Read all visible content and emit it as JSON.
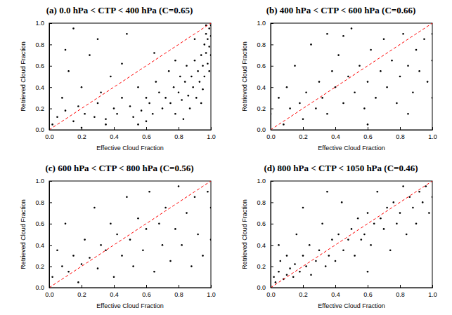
{
  "chart_data": [
    {
      "type": "scatter",
      "title": "(a) 0.0 hPa < CTP < 400 hPa (C=0.65)",
      "x_label": "Effective Cloud Fraction",
      "y_label": "Retrieved Cloud Fraction",
      "xlim": [
        0,
        1
      ],
      "ylim": [
        0,
        1
      ],
      "xticks": [
        {
          "value": 0,
          "label": "0.0"
        },
        {
          "value": 0.2,
          "label": "0.2"
        },
        {
          "value": 0.4,
          "label": "0.4"
        },
        {
          "value": 0.6,
          "label": "0.6"
        },
        {
          "value": 0.8,
          "label": "0.8"
        },
        {
          "value": 1,
          "label": "1.0"
        }
      ],
      "yticks": [
        {
          "value": 0,
          "label": "0.0"
        },
        {
          "value": 0.2,
          "label": "0.2"
        },
        {
          "value": 0.4,
          "label": "0.4"
        },
        {
          "value": 0.6,
          "label": "0.6"
        },
        {
          "value": 0.8,
          "label": "0.8"
        },
        {
          "value": 1,
          "label": "1.0"
        }
      ],
      "series": [
        {
          "type": "scatter",
          "color": "#000000",
          "marker": "circle",
          "x": [
            0.02,
            0.05,
            0.08,
            0.1,
            0.12,
            0.15,
            0.18,
            0.2,
            0.22,
            0.25,
            0.28,
            0.3,
            0.32,
            0.35,
            0.38,
            0.4,
            0.42,
            0.45,
            0.48,
            0.5,
            0.52,
            0.55,
            0.57,
            0.6,
            0.62,
            0.64,
            0.66,
            0.68,
            0.7,
            0.72,
            0.74,
            0.75,
            0.77,
            0.78,
            0.8,
            0.81,
            0.82,
            0.84,
            0.85,
            0.86,
            0.87,
            0.88,
            0.89,
            0.9,
            0.91,
            0.92,
            0.93,
            0.94,
            0.95,
            0.95,
            0.96,
            0.96,
            0.97,
            0.97,
            0.98,
            0.98,
            0.99,
            0.99,
            1.0,
            1.0,
            1.0,
            0.99,
            0.94,
            0.83,
            0.6,
            0.35,
            0.15,
            0.65,
            0.45,
            0.3,
            0.1,
            0.2,
            0.55,
            0.78,
            0.9,
            0.97
          ],
          "values": [
            0.05,
            0.12,
            0.3,
            0.18,
            0.55,
            0.08,
            0.22,
            0.4,
            0.15,
            0.7,
            0.12,
            0.25,
            0.35,
            0.1,
            0.5,
            0.2,
            0.15,
            0.3,
            0.9,
            0.22,
            0.12,
            0.4,
            0.18,
            0.3,
            0.25,
            0.15,
            0.45,
            0.35,
            0.2,
            0.3,
            0.55,
            0.25,
            0.4,
            0.15,
            0.35,
            0.5,
            0.28,
            0.45,
            0.6,
            0.32,
            0.2,
            0.5,
            0.4,
            0.65,
            0.3,
            0.55,
            0.45,
            0.7,
            0.38,
            0.6,
            0.8,
            0.5,
            0.72,
            0.9,
            0.85,
            0.62,
            0.95,
            0.78,
            0.98,
            0.88,
            0.7,
            0.55,
            0.25,
            0.1,
            0.08,
            0.05,
            0.95,
            0.72,
            0.62,
            0.85,
            0.75,
            0.02,
            0.05,
            0.65,
            0.85,
            0.98
          ]
        },
        {
          "type": "line",
          "color": "#ff0000",
          "line_style": "dashed",
          "x": [
            0,
            1
          ],
          "values": [
            0,
            1
          ]
        }
      ]
    },
    {
      "type": "scatter",
      "title": "(b) 400 hPa < CTP < 600 hPa (C=0.66)",
      "x_label": "Effective Cloud Fraction",
      "y_label": "Retrieved Cloud Fraction",
      "xlim": [
        0,
        1
      ],
      "ylim": [
        0,
        1
      ],
      "xticks": [
        {
          "value": 0,
          "label": "0.0"
        },
        {
          "value": 0.2,
          "label": "0.2"
        },
        {
          "value": 0.4,
          "label": "0.4"
        },
        {
          "value": 0.6,
          "label": "0.6"
        },
        {
          "value": 0.8,
          "label": "0.8"
        },
        {
          "value": 1,
          "label": "1.0"
        }
      ],
      "yticks": [
        {
          "value": 0,
          "label": "0.0"
        },
        {
          "value": 0.2,
          "label": "0.2"
        },
        {
          "value": 0.4,
          "label": "0.4"
        },
        {
          "value": 0.6,
          "label": "0.6"
        },
        {
          "value": 0.8,
          "label": "0.8"
        },
        {
          "value": 1,
          "label": "1.0"
        }
      ],
      "series": [
        {
          "type": "scatter",
          "color": "#000000",
          "marker": "circle",
          "x": [
            0,
            0.05,
            0.08,
            0.1,
            0.12,
            0.15,
            0.18,
            0.2,
            0.22,
            0.25,
            0.28,
            0.3,
            0.32,
            0.35,
            0.38,
            0.4,
            0.42,
            0.45,
            0.48,
            0.5,
            0.52,
            0.55,
            0.58,
            0.6,
            0.62,
            0.65,
            0.68,
            0.7,
            0.72,
            0.75,
            0.78,
            0.8,
            0.82,
            0.85,
            0.88,
            0.9,
            0.92,
            0.95,
            0.97,
            1.0,
            1.0,
            1.0,
            0.6,
            0.85,
            0.35,
            0.45
          ],
          "values": [
            0.15,
            0.3,
            0.05,
            0.4,
            0.2,
            0.6,
            0.25,
            0.1,
            0.35,
            0.8,
            0.2,
            0.45,
            0.3,
            0.15,
            0.55,
            0.4,
            0.7,
            0.25,
            0.5,
            0.95,
            0.35,
            0.6,
            0.2,
            0.45,
            0.75,
            0.3,
            0.55,
            0.85,
            0.4,
            0.65,
            0.25,
            0.5,
            0.9,
            0.6,
            0.35,
            0.75,
            0.55,
            0.85,
            0.45,
            0.9,
            0.65,
            0.3,
            0.05,
            0.15,
            0.9,
            0.88
          ]
        },
        {
          "type": "line",
          "color": "#ff0000",
          "line_style": "dashed",
          "x": [
            0,
            1
          ],
          "values": [
            0,
            1
          ]
        }
      ]
    },
    {
      "type": "scatter",
      "title": "(c) 600 hPa < CTP < 800 hPa (C=0.56)",
      "x_label": "Effective Cloud Fraction",
      "y_label": "Retrieved Cloud Fraction",
      "xlim": [
        0,
        1
      ],
      "ylim": [
        0,
        1
      ],
      "xticks": [
        {
          "value": 0,
          "label": "0.0"
        },
        {
          "value": 0.2,
          "label": "0.2"
        },
        {
          "value": 0.4,
          "label": "0.4"
        },
        {
          "value": 0.6,
          "label": "0.6"
        },
        {
          "value": 0.8,
          "label": "0.8"
        },
        {
          "value": 1,
          "label": "1.0"
        }
      ],
      "yticks": [
        {
          "value": 0,
          "label": "0.0"
        },
        {
          "value": 0.2,
          "label": "0.2"
        },
        {
          "value": 0.4,
          "label": "0.4"
        },
        {
          "value": 0.6,
          "label": "0.6"
        },
        {
          "value": 0.8,
          "label": "0.8"
        },
        {
          "value": 1,
          "label": "1.0"
        }
      ],
      "series": [
        {
          "type": "scatter",
          "color": "#000000",
          "marker": "circle",
          "x": [
            0.02,
            0.05,
            0.08,
            0.1,
            0.12,
            0.15,
            0.18,
            0.2,
            0.22,
            0.25,
            0.28,
            0.3,
            0.32,
            0.35,
            0.38,
            0.4,
            0.42,
            0.45,
            0.48,
            0.5,
            0.52,
            0.55,
            0.58,
            0.6,
            0.62,
            0.65,
            0.68,
            0.7,
            0.72,
            0.75,
            0.78,
            0.8,
            0.82,
            0.85,
            0.88,
            0.9,
            0.92,
            0.95,
            0.98,
            1.0,
            1.0
          ],
          "values": [
            0.1,
            0.35,
            0.2,
            0.6,
            0.15,
            0.3,
            0.05,
            0.22,
            0.45,
            0.28,
            0.75,
            0.18,
            0.4,
            0.35,
            0.6,
            0.1,
            0.5,
            0.3,
            0.85,
            0.45,
            0.2,
            0.65,
            0.35,
            0.55,
            0.9,
            0.15,
            0.6,
            0.4,
            0.75,
            0.25,
            0.55,
            0.95,
            0.4,
            0.7,
            0.2,
            0.85,
            0.5,
            0.3,
            0.9,
            0.75,
            0.45
          ]
        },
        {
          "type": "line",
          "color": "#ff0000",
          "line_style": "dashed",
          "x": [
            0,
            1
          ],
          "values": [
            0,
            1
          ]
        }
      ]
    },
    {
      "type": "scatter",
      "title": "(d) 800 hPa < CTP < 1050 hPa (C=0.46)",
      "x_label": "Effective Cloud Fraction",
      "y_label": "Retrieved Cloud Fraction",
      "xlim": [
        0,
        1
      ],
      "ylim": [
        0,
        1
      ],
      "xticks": [
        {
          "value": 0,
          "label": "0.0"
        },
        {
          "value": 0.2,
          "label": "0.2"
        },
        {
          "value": 0.4,
          "label": "0.4"
        },
        {
          "value": 0.6,
          "label": "0.6"
        },
        {
          "value": 0.8,
          "label": "0.8"
        },
        {
          "value": 1,
          "label": "1.0"
        }
      ],
      "yticks": [
        {
          "value": 0,
          "label": "0.0"
        },
        {
          "value": 0.2,
          "label": "0.2"
        },
        {
          "value": 0.4,
          "label": "0.4"
        },
        {
          "value": 0.6,
          "label": "0.6"
        },
        {
          "value": 0.8,
          "label": "0.8"
        },
        {
          "value": 1,
          "label": "1.0"
        }
      ],
      "series": [
        {
          "type": "scatter",
          "color": "#000000",
          "marker": "circle",
          "x": [
            0,
            0.02,
            0.03,
            0.05,
            0.06,
            0.08,
            0.1,
            0.1,
            0.12,
            0.14,
            0.15,
            0.16,
            0.18,
            0.2,
            0.22,
            0.24,
            0.25,
            0.28,
            0.3,
            0.32,
            0.34,
            0.36,
            0.38,
            0.4,
            0.42,
            0.44,
            0.45,
            0.48,
            0.5,
            0.52,
            0.54,
            0.56,
            0.58,
            0.6,
            0.62,
            0.64,
            0.66,
            0.68,
            0.7,
            0.72,
            0.74,
            0.76,
            0.78,
            0.8,
            0.82,
            0.84,
            0.86,
            0.88,
            0.9,
            0.92,
            0.94,
            0.96,
            0.98,
            1.0,
            1.0,
            0.2,
            0.6,
            0.05,
            0.35
          ],
          "values": [
            0.02,
            0.1,
            0.05,
            0.15,
            0.25,
            0.08,
            0.12,
            0.3,
            0.18,
            0.1,
            0.22,
            0.5,
            0.15,
            0.3,
            0.2,
            0.4,
            0.12,
            0.25,
            0.35,
            0.6,
            0.2,
            0.3,
            0.45,
            0.25,
            0.5,
            0.8,
            0.35,
            0.45,
            0.55,
            0.3,
            0.65,
            0.45,
            0.5,
            0.7,
            0.4,
            0.6,
            0.9,
            0.65,
            0.55,
            0.75,
            0.35,
            0.8,
            0.6,
            0.7,
            0.95,
            0.5,
            0.85,
            0.75,
            0.6,
            0.9,
            0.8,
            0.95,
            0.7,
            1.0,
            0.85,
            0.75,
            0.15,
            0.4,
            0.9
          ]
        },
        {
          "type": "line",
          "color": "#ff0000",
          "line_style": "dashed",
          "x": [
            0,
            1
          ],
          "values": [
            0,
            1
          ]
        }
      ]
    }
  ]
}
